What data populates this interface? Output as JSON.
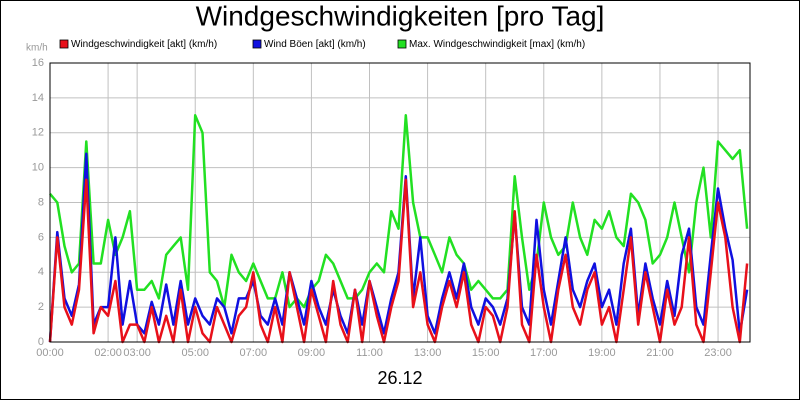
{
  "chart_data": {
    "type": "line",
    "title": "Windgeschwindigkeiten [pro Tag]",
    "y_label": "km/h",
    "x_label": "26.12",
    "x": [
      0,
      0.25,
      0.5,
      0.75,
      1,
      1.25,
      1.5,
      1.75,
      2,
      2.25,
      2.5,
      2.75,
      3,
      3.25,
      3.5,
      3.75,
      4,
      4.25,
      4.5,
      4.75,
      5,
      5.25,
      5.5,
      5.75,
      6,
      6.25,
      6.5,
      6.75,
      7,
      7.25,
      7.5,
      7.75,
      8,
      8.25,
      8.5,
      8.75,
      9,
      9.25,
      9.5,
      9.75,
      10,
      10.25,
      10.5,
      10.75,
      11,
      11.25,
      11.5,
      11.75,
      12,
      12.25,
      12.5,
      12.75,
      13,
      13.25,
      13.5,
      13.75,
      14,
      14.25,
      14.5,
      14.75,
      15,
      15.25,
      15.5,
      15.75,
      16,
      16.25,
      16.5,
      16.75,
      17,
      17.25,
      17.5,
      17.75,
      18,
      18.25,
      18.5,
      18.75,
      19,
      19.25,
      19.5,
      19.75,
      20,
      20.25,
      20.5,
      20.75,
      21,
      21.25,
      21.5,
      21.75,
      22,
      22.25,
      22.5,
      22.75,
      23,
      23.25,
      23.5,
      23.75,
      24
    ],
    "series": [
      {
        "name": "Windgeschwindigkeit [akt] (km/h)",
        "color": "#e8101a",
        "values": [
          0,
          6,
          2,
          1,
          3,
          9.3,
          0.5,
          2,
          1.5,
          3.5,
          0,
          1,
          1,
          0,
          2,
          0,
          1.5,
          0,
          3,
          0,
          2,
          0.5,
          0,
          2,
          1,
          0,
          1.5,
          2,
          4,
          1,
          0,
          2,
          0,
          4,
          2,
          0,
          3,
          1.5,
          0,
          3.5,
          1,
          0,
          3,
          0,
          3.5,
          1.5,
          0,
          2,
          3.5,
          9.3,
          2,
          4,
          1,
          0,
          2,
          3.5,
          2,
          4,
          1,
          0,
          2,
          1.5,
          0,
          2,
          7.5,
          1,
          0,
          5,
          2,
          0,
          3,
          5,
          2,
          1,
          3,
          4,
          1,
          2,
          0,
          3,
          6,
          1,
          4,
          2,
          0,
          3,
          1,
          2,
          6,
          1,
          0,
          4,
          8,
          6,
          2,
          0,
          4.5
        ]
      },
      {
        "name": "Wind Böen [akt] (km/h)",
        "color": "#1010e0",
        "values": [
          0,
          6.3,
          2.5,
          1.5,
          3.3,
          10.8,
          1,
          2,
          2,
          6,
          1,
          3.5,
          1,
          0.5,
          2.3,
          1,
          3.3,
          1,
          3.5,
          1,
          2.5,
          1.5,
          1,
          2.5,
          2,
          0.5,
          2.5,
          2.5,
          3.5,
          1.5,
          1,
          2.5,
          1,
          4,
          2.5,
          1,
          3.5,
          2,
          1,
          3,
          1.5,
          0.5,
          3,
          1,
          3.5,
          2,
          0.5,
          2.5,
          4,
          9.5,
          2.5,
          6,
          1.5,
          0.5,
          2.5,
          4,
          2.5,
          4.5,
          2,
          1,
          2.5,
          2,
          1,
          2.5,
          7.3,
          2,
          1,
          7,
          3,
          1,
          3.5,
          6,
          3,
          2,
          3.5,
          4.5,
          2,
          3,
          1,
          4.5,
          6.5,
          1.5,
          4.5,
          2.5,
          1,
          3.5,
          1.5,
          5,
          6.5,
          2,
          1,
          5,
          8.8,
          6.5,
          4.7,
          0.5,
          3
        ]
      },
      {
        "name": "Max. Windgeschwindigkeit [max] (km/h)",
        "color": "#22e022",
        "values": [
          8.5,
          8,
          5.5,
          4,
          4.5,
          11.5,
          4.5,
          4.5,
          7,
          5,
          6,
          7.5,
          3,
          3,
          3.5,
          2.5,
          5,
          5.5,
          6,
          3,
          13,
          12,
          4,
          3.5,
          2,
          5,
          4,
          3.5,
          4.5,
          3.5,
          2.5,
          2.5,
          4,
          2,
          2.5,
          2,
          3,
          3.5,
          5,
          4.5,
          3.5,
          2.5,
          2.5,
          3,
          4,
          4.5,
          4,
          7.5,
          6.5,
          13,
          8,
          6,
          6,
          5,
          4,
          6,
          5,
          4.5,
          3,
          3.5,
          3,
          2.5,
          2.5,
          3,
          9.5,
          6,
          3,
          4.5,
          8,
          6,
          5,
          5.5,
          8,
          6,
          5,
          7,
          6.5,
          7.5,
          6,
          5.5,
          8.5,
          8,
          7,
          4.5,
          5,
          6,
          8,
          6,
          4,
          8,
          10,
          6,
          11.5,
          11,
          10.5,
          11,
          6.5
        ]
      }
    ],
    "xlim": [
      0,
      24.1
    ],
    "xticks": [
      {
        "value": 0,
        "label": "00:00"
      },
      {
        "value": 2,
        "label": "02:00"
      },
      {
        "value": 3,
        "label": "03:00"
      },
      {
        "value": 5,
        "label": "05:00"
      },
      {
        "value": 7,
        "label": "07:00"
      },
      {
        "value": 9,
        "label": "09:00"
      },
      {
        "value": 11,
        "label": "11:00"
      },
      {
        "value": 13,
        "label": "13:00"
      },
      {
        "value": 15,
        "label": "15:00"
      },
      {
        "value": 17,
        "label": "17:00"
      },
      {
        "value": 19,
        "label": "19:00"
      },
      {
        "value": 21,
        "label": "21:00"
      },
      {
        "value": 23,
        "label": "23:00"
      }
    ],
    "ylim": [
      0,
      16
    ],
    "yticks": [
      0,
      2,
      4,
      6,
      8,
      10,
      12,
      14,
      16
    ],
    "grid": true
  }
}
